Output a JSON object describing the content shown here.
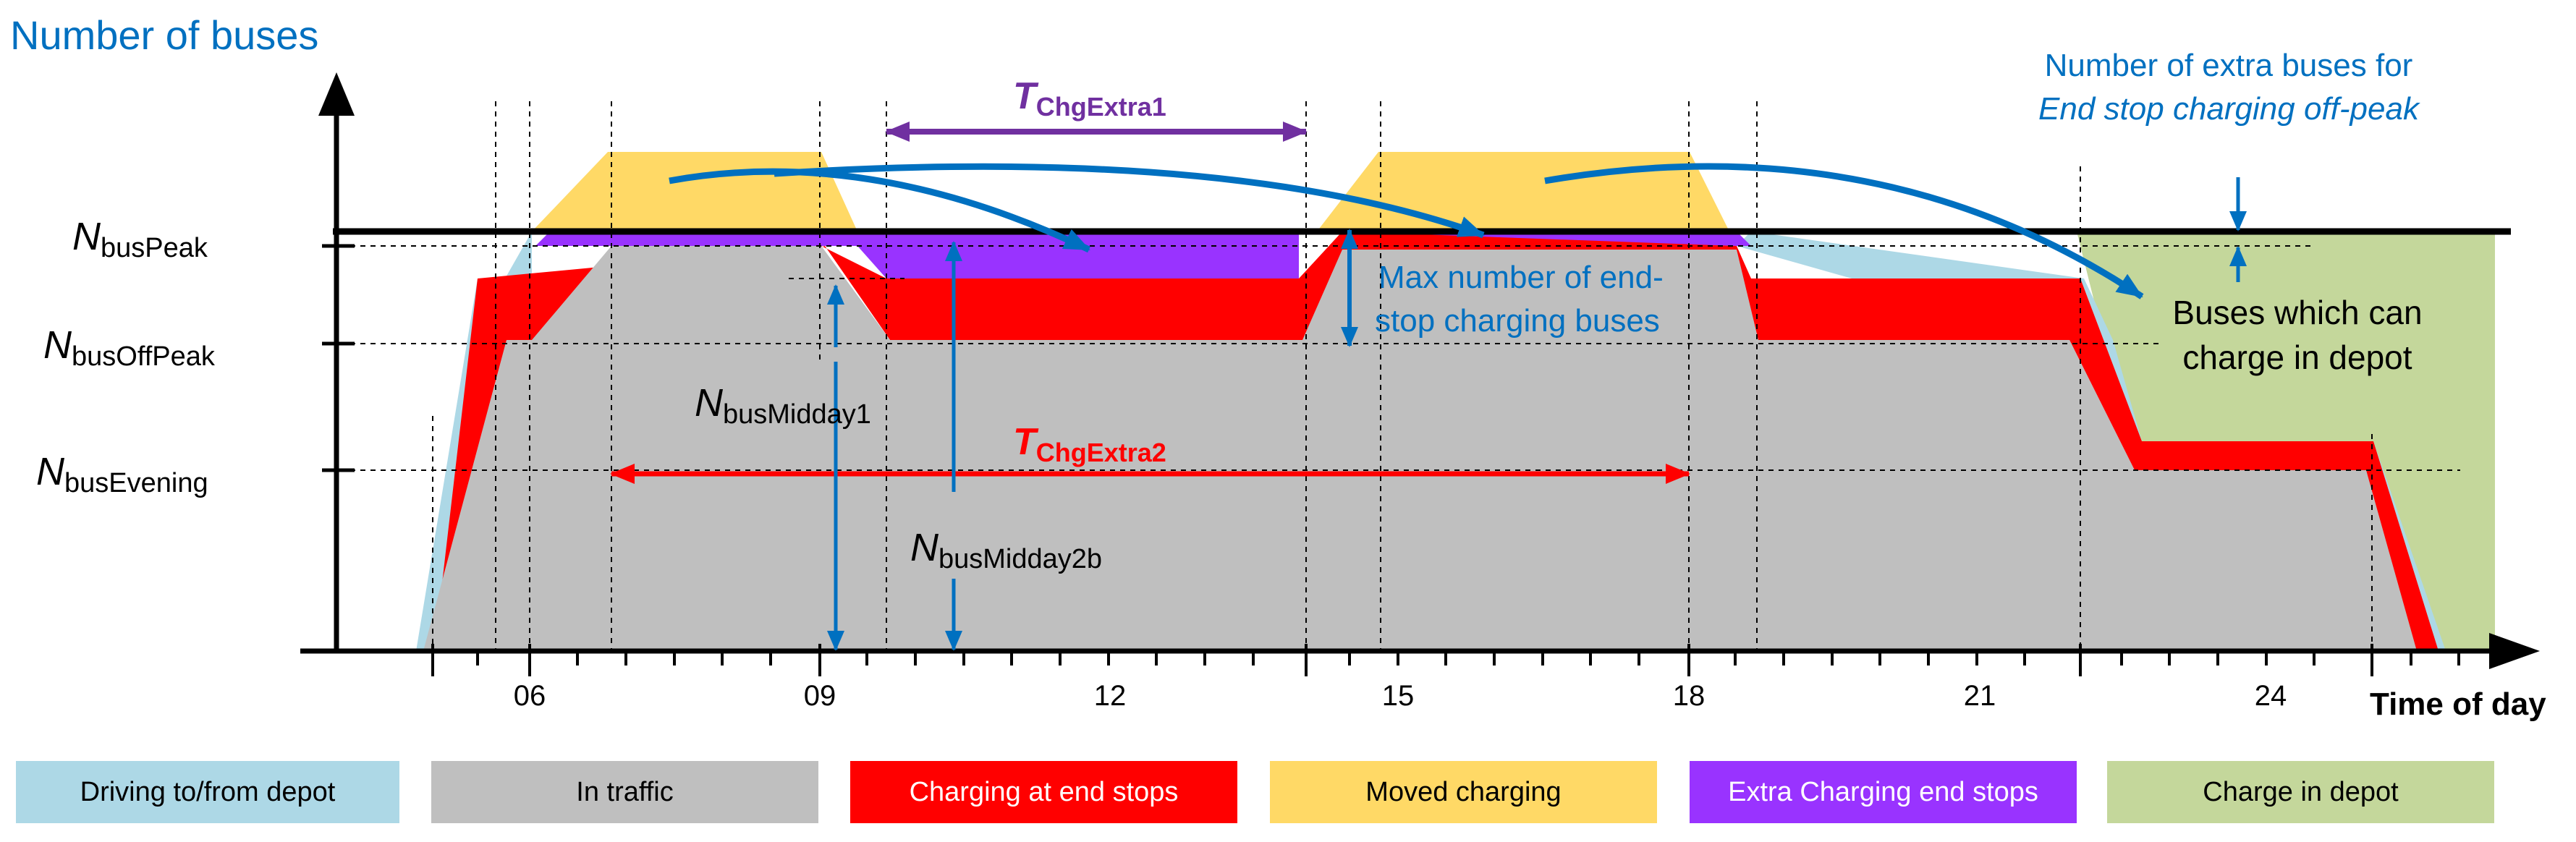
{
  "title": "Number of buses",
  "x_axis": {
    "label": "Time of day",
    "ticks": [
      "06",
      "09",
      "12",
      "15",
      "18",
      "21",
      "24"
    ]
  },
  "y_levels": [
    {
      "main": "N",
      "sub": "busPeak"
    },
    {
      "main": "N",
      "sub": "busOffPeak"
    },
    {
      "main": "N",
      "sub": "busEvening"
    }
  ],
  "annotations": {
    "t_chg_extra1": {
      "main": "T",
      "sub": "ChgExtra1"
    },
    "t_chg_extra2": {
      "main": "T",
      "sub": "ChgExtra2"
    },
    "n_midday1": {
      "main": "N",
      "sub": "busMidday1"
    },
    "n_midday2b": {
      "main": "N",
      "sub": "busMidday2b"
    },
    "extra_buses_line1": "Number of extra buses for",
    "extra_buses_line2": "End stop charging off-peak",
    "max_endstop_line1": "Max number of end-",
    "max_endstop_line2": "stop charging buses",
    "depot_line1": "Buses which can",
    "depot_line2": "charge in depot"
  },
  "legend": [
    {
      "label": "Driving to/from depot",
      "color": "#ADD8E6",
      "text_color": "#000000"
    },
    {
      "label": "In traffic",
      "color": "#BFBFBF",
      "text_color": "#000000"
    },
    {
      "label": "Charging at end stops",
      "color": "#FF0000",
      "text_color": "#FFFFFF"
    },
    {
      "label": "Moved charging",
      "color": "#FFD966",
      "text_color": "#000000"
    },
    {
      "label": "Extra Charging end stops",
      "color": "#9933FF",
      "text_color": "#FFFFFF"
    },
    {
      "label": "Charge in depot",
      "color": "#C4D79B",
      "text_color": "#000000"
    }
  ],
  "colors": {
    "blue_text": "#0070C0",
    "purple_text": "#7030A0",
    "red": "#FF0000"
  }
}
